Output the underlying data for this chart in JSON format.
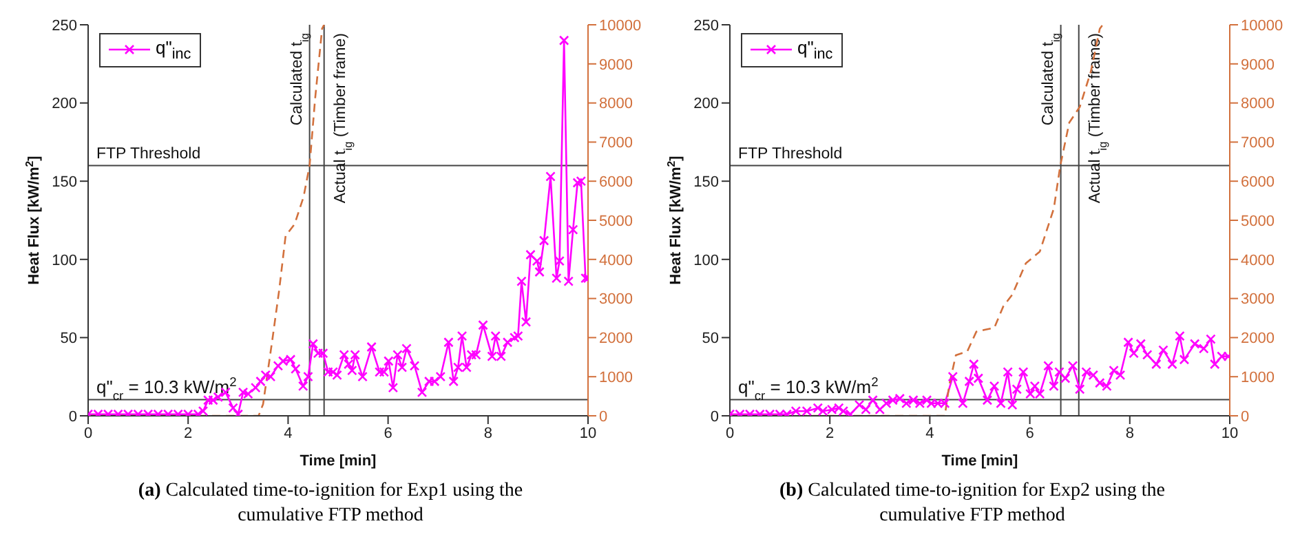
{
  "chart_data": [
    {
      "type": "line",
      "xlabel": "Time [min]",
      "ylabel": "Heat Flux [kW/m$^{2}$]",
      "xlim": [
        0,
        10
      ],
      "xticks": [
        0,
        2,
        4,
        6,
        8,
        10
      ],
      "ylim": [
        0,
        250
      ],
      "yticks": [
        0,
        50,
        100,
        150,
        200,
        250
      ],
      "y2lim": [
        0,
        10000
      ],
      "y2ticks": [
        0,
        1000,
        2000,
        3000,
        4000,
        5000,
        6000,
        7000,
        8000,
        9000,
        10000
      ],
      "legend": "top left",
      "series": [
        {
          "name": "q\"$_{inc}$",
          "color": "#ff00ff",
          "marker": "cross",
          "line_style": "solid",
          "x": [
            0,
            0.2,
            0.4,
            0.6,
            0.8,
            1.0,
            1.2,
            1.4,
            1.6,
            1.8,
            2.0,
            2.2,
            2.3,
            2.4,
            2.5,
            2.6,
            2.75,
            2.9,
            3.0,
            3.1,
            3.2,
            3.35,
            3.45,
            3.55,
            3.65,
            3.8,
            3.9,
            4.05,
            4.15,
            4.3,
            4.4,
            4.5,
            4.6,
            4.7,
            4.8,
            4.9,
            4.98,
            5.12,
            5.21,
            5.28,
            5.34,
            5.49,
            5.67,
            5.83,
            5.92,
            6.01,
            6.1,
            6.19,
            6.28,
            6.37,
            6.53,
            6.68,
            6.82,
            6.93,
            7.05,
            7.21,
            7.31,
            7.4,
            7.48,
            7.57,
            7.67,
            7.76,
            7.9,
            8.08,
            8.15,
            8.26,
            8.39,
            8.53,
            8.6,
            8.67,
            8.76,
            8.85,
            8.98,
            9.03,
            9.12,
            9.25,
            9.37,
            9.43,
            9.52,
            9.61,
            9.7,
            9.79,
            9.86,
            9.95,
            10
          ],
          "values": [
            1,
            1,
            1,
            1,
            1,
            1,
            1,
            1,
            1,
            1,
            1,
            1,
            3,
            10,
            10,
            12,
            15,
            5,
            1,
            15,
            14,
            18,
            22,
            26,
            25,
            32,
            35,
            36,
            30,
            19,
            25,
            46,
            40,
            40,
            28,
            28,
            26,
            39,
            33,
            29,
            39,
            25,
            44,
            28,
            28,
            35,
            18,
            39,
            31,
            43,
            32,
            15,
            22,
            22,
            25,
            47,
            22,
            31,
            51,
            31,
            39,
            39,
            58,
            38,
            51,
            38,
            47,
            50,
            51,
            86,
            60,
            103,
            99,
            92,
            112,
            153,
            88,
            99,
            240,
            86,
            119,
            149,
            150,
            88,
            88
          ]
        },
        {
          "color": "#d2703c",
          "marker": "none",
          "line_style": "dashed",
          "axis": "y2",
          "x": [
            0,
            3.41,
            3.5,
            3.68,
            3.82,
            3.95,
            4.13,
            4.31,
            4.43,
            4.54,
            4.68,
            4.72
          ],
          "values": [
            0,
            0,
            300,
            1900,
            3200,
            4600,
            4900,
            5600,
            6400,
            8100,
            9900,
            10000
          ]
        }
      ],
      "ref_lines": [
        {
          "axis": "y",
          "value": 160,
          "label": "FTP Threshold",
          "color": "#444444"
        },
        {
          "axis": "y",
          "value": 10.3,
          "label": "q\"$_{cr}$ = 10.3 kW/m$^{2}$",
          "color": "#444444"
        },
        {
          "axis": "x",
          "value": 4.43,
          "label": "Calculated t$_{ig}$",
          "color": "#444444"
        },
        {
          "axis": "x",
          "value": 4.72,
          "label": "Actual t$_{ig}$ (Timber frame)",
          "color": "#444444"
        }
      ],
      "annotations": [
        "(a) Calculated time-to-ignition for Exp1 using the cumulative FTP method"
      ]
    },
    {
      "type": "line",
      "xlabel": "Time [min]",
      "ylabel": "Heat Flux [kW/m$^{2}$]",
      "xlim": [
        0,
        10
      ],
      "xticks": [
        0,
        2,
        4,
        6,
        8,
        10
      ],
      "ylim": [
        0,
        250
      ],
      "yticks": [
        0,
        50,
        100,
        150,
        200,
        250
      ],
      "y2lim": [
        0,
        10000
      ],
      "y2ticks": [
        0,
        1000,
        2000,
        3000,
        4000,
        5000,
        6000,
        7000,
        8000,
        9000,
        10000
      ],
      "legend": "top left",
      "series": [
        {
          "name": "q\"$_{inc}$",
          "color": "#ff00ff",
          "marker": "cross",
          "line_style": "solid",
          "x": [
            0,
            0.2,
            0.4,
            0.6,
            0.8,
            1.0,
            1.14,
            1.32,
            1.54,
            1.76,
            1.86,
            2.04,
            2.18,
            2.27,
            2.41,
            2.59,
            2.72,
            2.86,
            3.0,
            3.13,
            3.26,
            3.4,
            3.53,
            3.67,
            3.8,
            3.94,
            4.03,
            4.16,
            4.3,
            4.46,
            4.66,
            4.79,
            4.88,
            4.97,
            5.15,
            5.29,
            5.42,
            5.56,
            5.65,
            5.74,
            5.87,
            6.01,
            6.1,
            6.2,
            6.37,
            6.48,
            6.59,
            6.71,
            6.86,
            7.0,
            7.13,
            7.27,
            7.4,
            7.54,
            7.68,
            7.81,
            7.97,
            8.08,
            8.22,
            8.35,
            8.53,
            8.67,
            8.85,
            9.0,
            9.09,
            9.3,
            9.48,
            9.62,
            9.7,
            9.84,
            9.97
          ],
          "values": [
            1,
            1,
            1,
            1,
            1,
            1,
            1,
            3,
            3,
            5,
            3,
            4,
            5,
            3,
            1,
            7,
            4,
            10,
            4,
            8,
            10,
            11,
            8,
            10,
            8,
            10,
            8,
            8,
            8,
            25,
            8,
            22,
            33,
            24,
            10,
            19,
            8,
            28,
            7,
            17,
            28,
            14,
            19,
            14,
            32,
            19,
            28,
            24,
            32,
            17,
            28,
            26,
            21,
            19,
            29,
            26,
            47,
            40,
            46,
            39,
            33,
            42,
            33,
            51,
            36,
            46,
            43,
            49,
            33,
            38,
            38
          ]
        },
        {
          "color": "#d2703c",
          "marker": "none",
          "line_style": "dashed",
          "axis": "y2",
          "x": [
            0,
            4.3,
            4.39,
            4.52,
            4.75,
            4.93,
            5.1,
            5.29,
            5.47,
            5.65,
            5.92,
            6.2,
            6.48,
            6.61,
            6.79,
            7.0,
            7.22,
            7.4,
            7.46
          ],
          "values": [
            0,
            0,
            800,
            1550,
            1650,
            2150,
            2200,
            2250,
            2800,
            3100,
            3900,
            4200,
            5300,
            6400,
            7500,
            7900,
            8800,
            9900,
            10000
          ]
        }
      ],
      "ref_lines": [
        {
          "axis": "y",
          "value": 160,
          "label": "FTP Threshold",
          "color": "#444444"
        },
        {
          "axis": "y",
          "value": 10.3,
          "label": "q\"$_{cr}$ = 10.3 kW/m$^{2}$",
          "color": "#444444"
        },
        {
          "axis": "x",
          "value": 6.62,
          "label": "Calculated t$_{ig}$",
          "color": "#444444"
        },
        {
          "axis": "x",
          "value": 6.98,
          "label": "Actual t$_{ig}$ (Timber frame)",
          "color": "#444444"
        }
      ],
      "annotations": [
        "(b) Calculated time-to-ignition for Exp2 using the cumulative FTP method"
      ]
    }
  ]
}
